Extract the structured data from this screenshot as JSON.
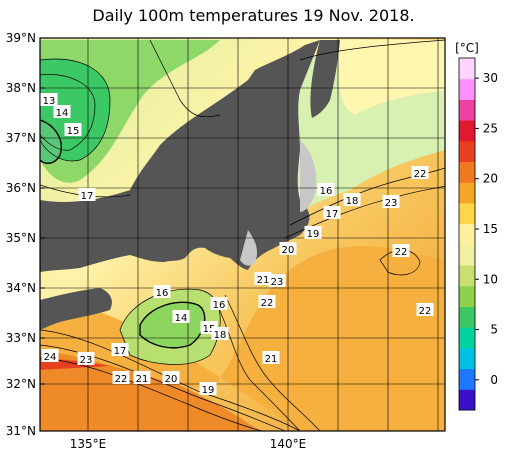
{
  "title": "Daily 100m temperatures 19 Nov. 2018.",
  "map": {
    "lat_labels": [
      "39°N",
      "38°N",
      "37°N",
      "36°N",
      "35°N",
      "34°N",
      "33°N",
      "32°N",
      "31°N"
    ],
    "lon_labels": [
      "135°E",
      "140°E"
    ],
    "contour_labels": [
      "13",
      "14",
      "15",
      "17",
      "16",
      "18",
      "17",
      "19",
      "20",
      "22",
      "23",
      "22",
      "22",
      "21",
      "23",
      "22",
      "16",
      "14",
      "16",
      "15",
      "18",
      "21",
      "24",
      "23",
      "17",
      "22",
      "21",
      "20",
      "19"
    ]
  },
  "colorbar": {
    "unit": "[°C]",
    "ticks": [
      "30",
      "25",
      "20",
      "15",
      "10",
      "5",
      "0"
    ],
    "colors": [
      "#3a10c8",
      "#1e78ff",
      "#00c0e0",
      "#00d2a0",
      "#3cc864",
      "#8ed24a",
      "#c8e070",
      "#f0f0a0",
      "#fff0a0",
      "#ffd54a",
      "#f5a623",
      "#f07820",
      "#e84020",
      "#e01830",
      "#f040a0",
      "#ff90ff",
      "#ffd4ff"
    ]
  },
  "colors": {
    "land": "#555555",
    "shoal": "#c8c8c8",
    "grid": "#000000"
  }
}
